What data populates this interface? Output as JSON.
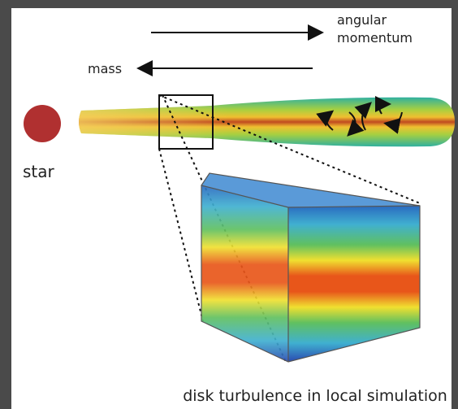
{
  "angular_momentum_label": {
    "lines": [
      "angular",
      "momentum"
    ]
  },
  "mass_label": "mass",
  "star_label": "star",
  "caption": "disk turbulence in local simulation"
}
